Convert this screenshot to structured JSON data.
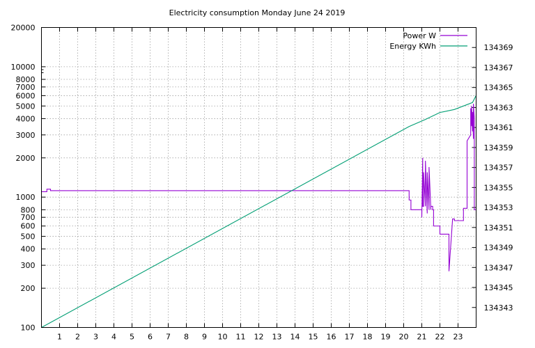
{
  "chart_data": {
    "type": "line",
    "title": "Electricity consumption Monday June 24 2019",
    "xlabel": "",
    "ylabel": "",
    "y2label": "",
    "xlim": [
      0,
      24
    ],
    "ylim": [
      100,
      20000
    ],
    "y_scale": "log",
    "y2lim": [
      134341,
      134371
    ],
    "grid": true,
    "legend_position": "top-right",
    "x_ticks": [
      1,
      2,
      3,
      4,
      5,
      6,
      7,
      8,
      9,
      10,
      11,
      12,
      13,
      14,
      15,
      16,
      17,
      18,
      19,
      20,
      21,
      22,
      23
    ],
    "y_ticks": [
      100,
      200,
      300,
      400,
      500,
      600,
      700,
      800,
      1000,
      2000,
      3000,
      4000,
      5000,
      6000,
      7000,
      8000,
      10000,
      20000
    ],
    "y2_ticks": [
      134343,
      134345,
      134347,
      134349,
      134351,
      134353,
      134355,
      134357,
      134359,
      134361,
      134363,
      134365,
      134367,
      134369
    ],
    "series": [
      {
        "name": "Power W",
        "axis": "y",
        "color": "#9400d3",
        "x": [
          0,
          0.3,
          0.3,
          0.5,
          0.5,
          20.3,
          20.3,
          20.4,
          20.4,
          21.0,
          21.0,
          21.05,
          21.05,
          21.1,
          21.1,
          21.2,
          21.2,
          21.3,
          21.3,
          21.4,
          21.4,
          21.5,
          21.5,
          21.6,
          21.6,
          21.65,
          21.65,
          22.0,
          22.0,
          22.5,
          22.5,
          22.7,
          22.7,
          22.8,
          22.8,
          23.3,
          23.3,
          23.5,
          23.5,
          23.7,
          23.7,
          23.75,
          23.75,
          23.8,
          23.8,
          23.85,
          23.85,
          23.9,
          23.9,
          24
        ],
        "y": [
          1100,
          1100,
          1150,
          1150,
          1120,
          1120,
          950,
          950,
          800,
          800,
          700,
          2000,
          850,
          850,
          1550,
          850,
          1900,
          750,
          1550,
          800,
          1700,
          800,
          850,
          850,
          800,
          800,
          600,
          600,
          520,
          520,
          270,
          680,
          680,
          680,
          660,
          660,
          820,
          820,
          2700,
          3000,
          4800,
          3500,
          5000,
          3200,
          4500,
          2800,
          5200,
          4000,
          800,
          800
        ]
      },
      {
        "name": "Energy KWh",
        "axis": "y2",
        "color": "#009e73",
        "x": [
          0,
          20.3,
          21.2,
          22.0,
          22.8,
          23.8,
          24
        ],
        "y": [
          134341.0,
          134361.1,
          134361.8,
          134362.5,
          134362.8,
          134363.5,
          134364.2
        ]
      }
    ]
  }
}
